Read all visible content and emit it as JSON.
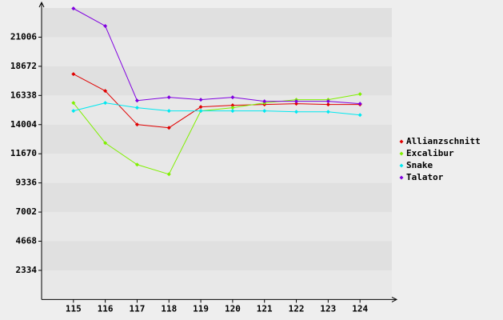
{
  "chart_data": {
    "type": "line",
    "x": [
      115,
      116,
      117,
      118,
      119,
      120,
      121,
      122,
      123,
      124
    ],
    "xlim": [
      114,
      125
    ],
    "xticks": [
      115,
      116,
      117,
      118,
      119,
      120,
      121,
      122,
      123,
      124
    ],
    "ylim": [
      0,
      23340
    ],
    "yticks": [
      2334,
      4668,
      7002,
      9336,
      11670,
      14004,
      16338,
      18672,
      21006
    ],
    "bands": true,
    "legend": "right",
    "series": [
      {
        "name": "Allianzschnitt",
        "color": "#e00000",
        "values": [
          18050,
          16700,
          14010,
          13750,
          15420,
          15550,
          15610,
          15680,
          15610,
          15610
        ]
      },
      {
        "name": "Excalibur",
        "color": "#80f000",
        "values": [
          15740,
          12530,
          10800,
          10030,
          15100,
          15360,
          15740,
          16000,
          16000,
          16450
        ]
      },
      {
        "name": "Snake",
        "color": "#00e8f0",
        "values": [
          15100,
          15740,
          15360,
          15100,
          15100,
          15100,
          15100,
          15030,
          15030,
          14770
        ]
      },
      {
        "name": "Talator",
        "color": "#8000e0",
        "values": [
          23300,
          21900,
          15930,
          16190,
          16000,
          16190,
          15870,
          15870,
          15870,
          15680
        ]
      }
    ]
  }
}
